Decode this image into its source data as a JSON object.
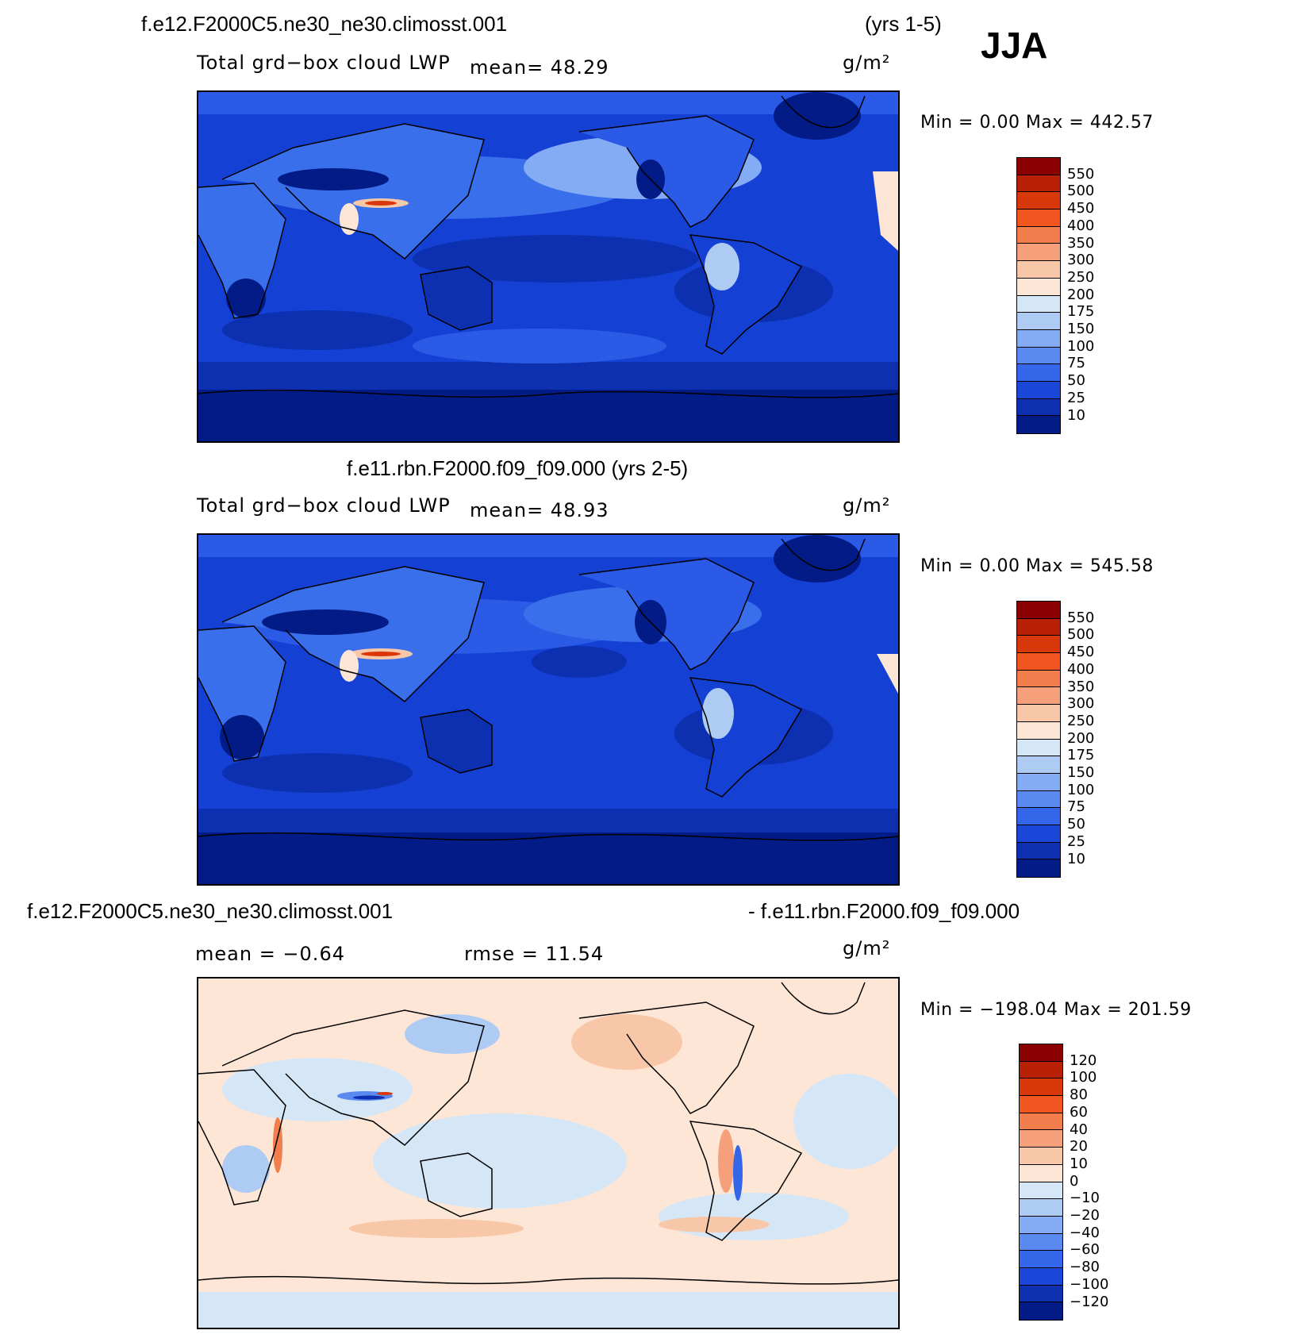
{
  "season": "JJA",
  "panels": [
    {
      "header_left": "f.e12.F2000C5.ne30_ne30.climosst.001",
      "header_right": "(yrs 1-5)",
      "variable": "Total grd−box cloud LWP",
      "stat1": "mean=   48.29",
      "stat2": "",
      "units": "g/m²",
      "minmax": "Min =    0.00  Max = 442.57",
      "legend_levels": [
        "550",
        "500",
        "450",
        "400",
        "350",
        "300",
        "250",
        "200",
        "175",
        "150",
        "100",
        "75",
        "50",
        "25",
        "10"
      ],
      "legend_colors": [
        "#8b0000",
        "#b82005",
        "#d8380a",
        "#f25620",
        "#f27e4e",
        "#f5a07a",
        "#f8c7a8",
        "#fde6d5",
        "#d5e6f7",
        "#aecbf4",
        "#84acf4",
        "#5a8af0",
        "#3366e8",
        "#1a47d8",
        "#0d30b0",
        "#021b86"
      ]
    },
    {
      "header_left": "f.e11.rbn.F2000.f09_f09.000 (yrs 2-5)",
      "header_right": "",
      "variable": "Total grd−box cloud LWP",
      "stat1": "mean=   48.93",
      "stat2": "",
      "units": "g/m²",
      "minmax": "Min =    0.00  Max = 545.58",
      "legend_levels": [
        "550",
        "500",
        "450",
        "400",
        "350",
        "300",
        "250",
        "200",
        "175",
        "150",
        "100",
        "75",
        "50",
        "25",
        "10"
      ],
      "legend_colors": [
        "#8b0000",
        "#b82005",
        "#d8380a",
        "#f25620",
        "#f27e4e",
        "#f5a07a",
        "#f8c7a8",
        "#fde6d5",
        "#d5e6f7",
        "#aecbf4",
        "#84acf4",
        "#5a8af0",
        "#3366e8",
        "#1a47d8",
        "#0d30b0",
        "#021b86"
      ]
    },
    {
      "header_left": "f.e12.F2000C5.ne30_ne30.climosst.001",
      "header_right": "- f.e11.rbn.F2000.f09_f09.000",
      "variable": "",
      "stat1": "mean =   −0.64",
      "stat2": "rmse =   11.54",
      "units": "g/m²",
      "minmax": "Min = −198.04  Max = 201.59",
      "legend_levels": [
        "120",
        "100",
        "80",
        "60",
        "40",
        "20",
        "10",
        "0",
        "−10",
        "−20",
        "−40",
        "−60",
        "−80",
        "−100",
        "−120"
      ],
      "legend_colors": [
        "#8b0000",
        "#b82005",
        "#d8380a",
        "#f25620",
        "#f27e4e",
        "#f5a07a",
        "#f8c7a8",
        "#fde6d5",
        "#d5e6f7",
        "#aecbf4",
        "#84acf4",
        "#5a8af0",
        "#3366e8",
        "#1a47d8",
        "#0d30b0",
        "#021b86"
      ]
    }
  ]
}
